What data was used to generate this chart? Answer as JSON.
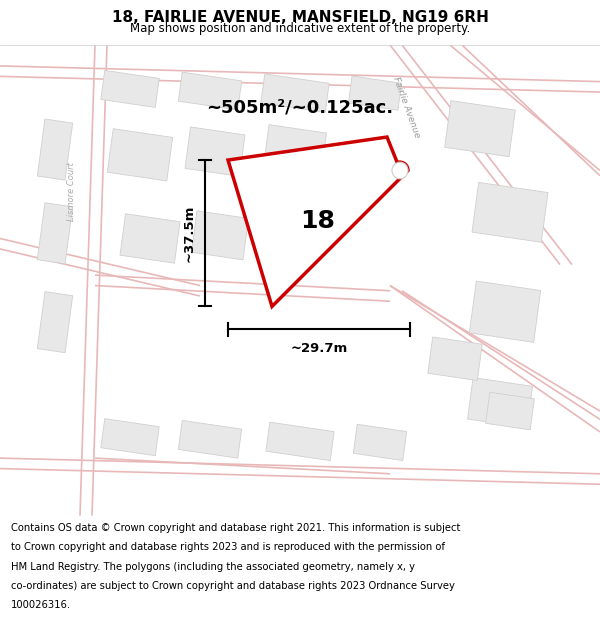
{
  "title": "18, FAIRLIE AVENUE, MANSFIELD, NG19 6RH",
  "subtitle": "Map shows position and indicative extent of the property.",
  "footer_lines": [
    "Contains OS data © Crown copyright and database right 2021. This information is subject",
    "to Crown copyright and database rights 2023 and is reproduced with the permission of",
    "HM Land Registry. The polygons (including the associated geometry, namely x, y",
    "co-ordinates) are subject to Crown copyright and database rights 2023 Ordnance Survey",
    "100026316."
  ],
  "area_label": "~505m²/~0.125ac.",
  "width_label": "~29.7m",
  "height_label": "~37.5m",
  "number_label": "18",
  "map_bg": "#f5f2f2",
  "road_line_color": "#e8b8b8",
  "building_fill": "#e8e8e8",
  "building_stroke": "#d0d0d0",
  "property_fill": "#ffffff",
  "property_stroke": "#cc0000",
  "street_label_fa": "Fairlie Avenue",
  "street_label_lc": "Lismore Court",
  "title_fontsize": 11,
  "subtitle_fontsize": 8.5,
  "footer_fontsize": 7.2,
  "area_fontsize": 13,
  "number_fontsize": 18,
  "dim_fontsize": 9.5
}
